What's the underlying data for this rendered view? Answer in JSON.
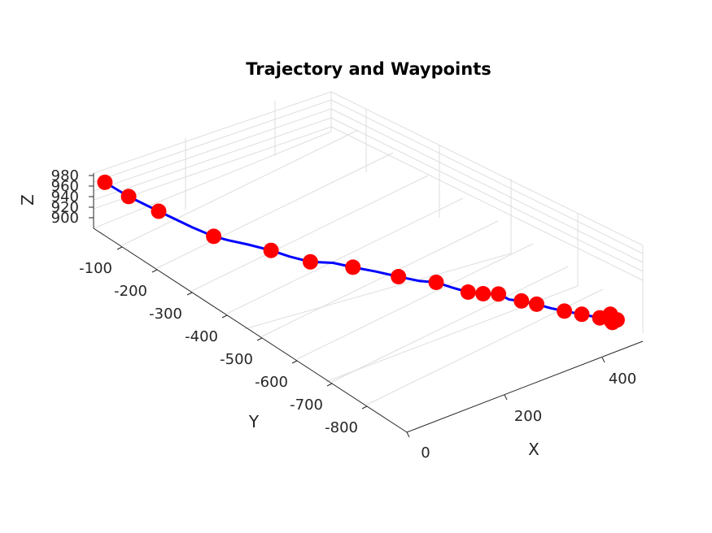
{
  "chart_data": {
    "type": "line",
    "title": "Trajectory and Waypoints",
    "xlabel": "X",
    "ylabel": "Y",
    "zlabel": "Z",
    "x_ticks": [
      "0",
      "200",
      "400"
    ],
    "y_ticks": [
      "-100",
      "-200",
      "-300",
      "-400",
      "-500",
      "-600",
      "-700",
      "-800"
    ],
    "z_ticks": [
      "980",
      "960",
      "940",
      "920",
      "900"
    ],
    "colors": {
      "trajectory": "#0000ff",
      "waypoint": "#ff0000"
    },
    "grid": true,
    "trajectory": [
      {
        "x": 12,
        "y": -20,
        "z": 973
      },
      {
        "x": 30,
        "y": -62,
        "z": 958
      },
      {
        "x": 55,
        "y": -112,
        "z": 943
      },
      {
        "x": 82,
        "y": -170,
        "z": 928
      },
      {
        "x": 100,
        "y": -205,
        "z": 920
      },
      {
        "x": 113,
        "y": -228,
        "z": 918
      },
      {
        "x": 132,
        "y": -258,
        "z": 916
      },
      {
        "x": 154,
        "y": -292,
        "z": 912
      },
      {
        "x": 172,
        "y": -320,
        "z": 906
      },
      {
        "x": 190,
        "y": -353,
        "z": 904
      },
      {
        "x": 213,
        "y": -385,
        "z": 908
      },
      {
        "x": 232,
        "y": -415,
        "z": 906
      },
      {
        "x": 255,
        "y": -448,
        "z": 904
      },
      {
        "x": 278,
        "y": -480,
        "z": 900
      },
      {
        "x": 298,
        "y": -510,
        "z": 898
      },
      {
        "x": 315,
        "y": -535,
        "z": 900
      },
      {
        "x": 328,
        "y": -565,
        "z": 898
      },
      {
        "x": 342,
        "y": -588,
        "z": 895
      },
      {
        "x": 358,
        "y": -608,
        "z": 895
      },
      {
        "x": 375,
        "y": -628,
        "z": 897
      },
      {
        "x": 382,
        "y": -648,
        "z": 893
      },
      {
        "x": 395,
        "y": -665,
        "z": 893
      },
      {
        "x": 408,
        "y": -690,
        "z": 893
      },
      {
        "x": 420,
        "y": -712,
        "z": 891
      },
      {
        "x": 432,
        "y": -735,
        "z": 891
      },
      {
        "x": 448,
        "y": -762,
        "z": 891
      },
      {
        "x": 463,
        "y": -792,
        "z": 892
      },
      {
        "x": 470,
        "y": -810,
        "z": 905
      },
      {
        "x": 480,
        "y": -818,
        "z": 895
      },
      {
        "x": 478,
        "y": -814,
        "z": 890
      }
    ],
    "waypoints": [
      {
        "x": 12,
        "y": -20,
        "z": 973
      },
      {
        "x": 30,
        "y": -62,
        "z": 958
      },
      {
        "x": 55,
        "y": -112,
        "z": 943
      },
      {
        "x": 100,
        "y": -205,
        "z": 920
      },
      {
        "x": 154,
        "y": -292,
        "z": 912
      },
      {
        "x": 190,
        "y": -353,
        "z": 904
      },
      {
        "x": 232,
        "y": -415,
        "z": 906
      },
      {
        "x": 278,
        "y": -480,
        "z": 900
      },
      {
        "x": 315,
        "y": -535,
        "z": 900
      },
      {
        "x": 342,
        "y": -588,
        "z": 895
      },
      {
        "x": 358,
        "y": -608,
        "z": 895
      },
      {
        "x": 375,
        "y": -628,
        "z": 897
      },
      {
        "x": 395,
        "y": -665,
        "z": 893
      },
      {
        "x": 408,
        "y": -690,
        "z": 893
      },
      {
        "x": 432,
        "y": -735,
        "z": 891
      },
      {
        "x": 448,
        "y": -762,
        "z": 891
      },
      {
        "x": 463,
        "y": -792,
        "z": 892
      },
      {
        "x": 470,
        "y": -812,
        "z": 905
      },
      {
        "x": 478,
        "y": -820,
        "z": 895
      },
      {
        "x": 476,
        "y": -806,
        "z": 888
      },
      {
        "x": 472,
        "y": -815,
        "z": 890
      }
    ]
  }
}
